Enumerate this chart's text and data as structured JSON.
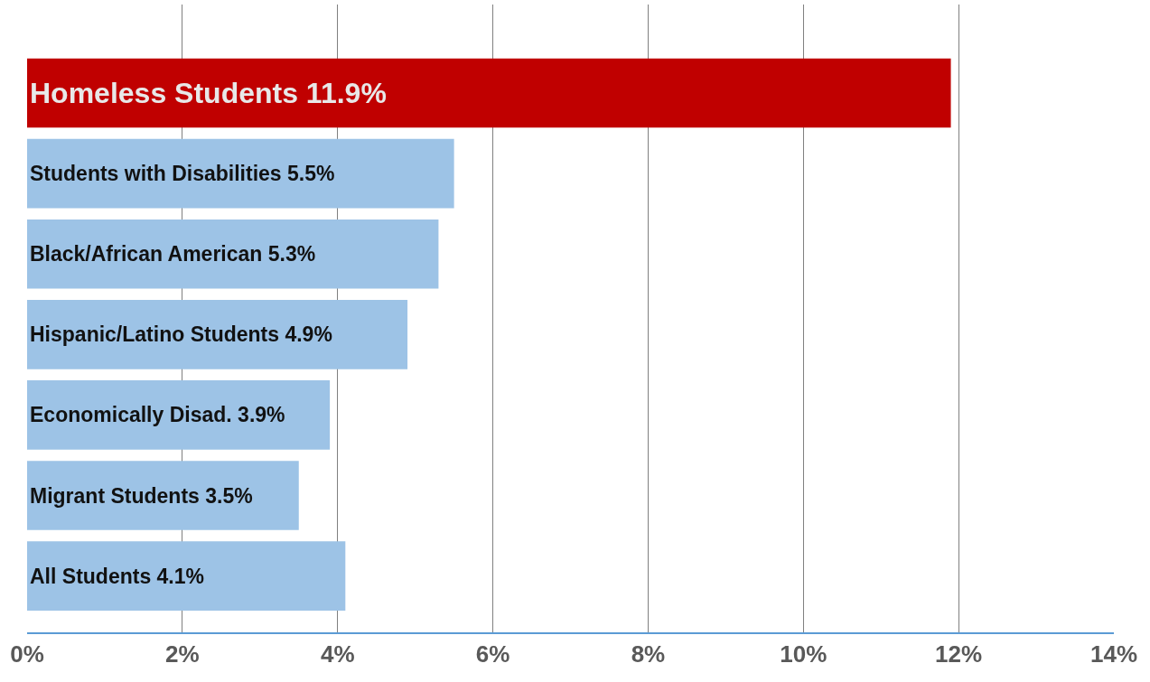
{
  "chart_data": {
    "type": "bar",
    "orientation": "horizontal",
    "categories": [
      "Homeless Students",
      "Students with Disabilities",
      "Black/African American",
      "Hispanic/Latino Students",
      "Economically Disad.",
      "Migrant Students",
      "All Students"
    ],
    "values": [
      11.9,
      5.5,
      5.3,
      4.9,
      3.9,
      3.5,
      4.1
    ],
    "value_labels": [
      "11.9%",
      "5.5%",
      "5.3%",
      "4.9%",
      "3.9%",
      "3.5%",
      "4.1%"
    ],
    "colors": [
      "#c00000",
      "#9dc3e6",
      "#9dc3e6",
      "#9dc3e6",
      "#9dc3e6",
      "#9dc3e6",
      "#9dc3e6"
    ],
    "xlim": [
      0,
      14
    ],
    "xticks": [
      {
        "value": 0,
        "label": "0%"
      },
      {
        "value": 2,
        "label": "2%"
      },
      {
        "value": 4,
        "label": "4%"
      },
      {
        "value": 6,
        "label": "6%"
      },
      {
        "value": 8,
        "label": "8%"
      },
      {
        "value": 10,
        "label": "10%"
      },
      {
        "value": 12,
        "label": "12%"
      },
      {
        "value": 14,
        "label": "14%"
      }
    ],
    "grid": "x",
    "tick_labels": "x"
  }
}
